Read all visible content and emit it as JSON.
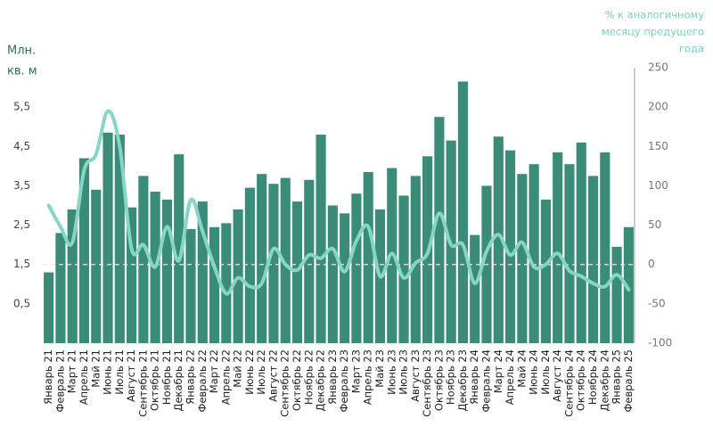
{
  "chart_data": {
    "type": "combo",
    "ylabel": [
      "Млн.",
      "кв. м"
    ],
    "y2label": [
      "% к аналогичному",
      "месяцу предущего",
      "года"
    ],
    "categories": [
      "Январь 21",
      "Февраль 21",
      "Март 21",
      "Апрель 21",
      "Май 21",
      "Июнь 21",
      "Июль 21",
      "Август 21",
      "Сентябрь 21",
      "Октябрь 21",
      "Ноябрь 21",
      "Декабрь 21",
      "Январь 22",
      "Февраль 22",
      "Март 22",
      "Апрель 22",
      "Май 22",
      "Июнь 22",
      "Июль 22",
      "Август 22",
      "Сентябрь 22",
      "Октябрь 22",
      "Ноябрь 22",
      "Декабрь 22",
      "Январь 23",
      "Февраль 23",
      "Март 23",
      "Апрель 23",
      "Май 23",
      "Июнь 23",
      "Июль 23",
      "Август 23",
      "Сентябрь 23",
      "Октябрь 23",
      "Ноябрь 23",
      "Декабрь 23",
      "Январь 24",
      "Февраль 24",
      "Март 24",
      "Апрель 24",
      "Май 24",
      "Июнь 24",
      "Июль 24",
      "Август 24",
      "Сентябрь 24",
      "Октябрь 24",
      "Ноябрь 24",
      "Декабрь 24",
      "Январь 25",
      "Февраль 25"
    ],
    "series": [
      {
        "type": "bar",
        "color": "#3a8c78",
        "values": [
          1.3,
          2.3,
          2.9,
          4.2,
          3.4,
          4.85,
          4.8,
          2.95,
          3.75,
          3.35,
          3.15,
          4.3,
          2.4,
          3.1,
          2.45,
          2.55,
          2.9,
          3.45,
          3.8,
          3.55,
          3.7,
          3.1,
          3.65,
          4.8,
          3.0,
          2.8,
          3.3,
          3.85,
          2.9,
          3.95,
          3.25,
          3.75,
          4.25,
          5.25,
          4.65,
          6.15,
          2.25,
          3.5,
          4.75,
          4.4,
          3.8,
          4.05,
          3.15,
          4.35,
          4.05,
          4.6,
          3.75,
          4.35,
          1.95,
          2.45
        ]
      },
      {
        "type": "line",
        "axis": "y2",
        "color": "#86d6c6",
        "values": [
          75,
          48,
          28,
          120,
          140,
          195,
          150,
          20,
          25,
          -3,
          48,
          5,
          82,
          42,
          -3,
          -37,
          -17,
          -28,
          -24,
          20,
          0,
          -7,
          12,
          8,
          20,
          -9,
          30,
          48,
          -15,
          14,
          -17,
          2,
          14,
          65,
          25,
          25,
          -24,
          17,
          38,
          12,
          28,
          -3,
          0,
          14,
          -8,
          -15,
          -24,
          -28,
          -13,
          -32
        ]
      }
    ],
    "ylim": [
      -0.5,
      6.5
    ],
    "yticks": [
      {
        "value": 0.5,
        "label": "0,5"
      },
      {
        "value": 1.5,
        "label": "1,5"
      },
      {
        "value": 2.5,
        "label": "2,5"
      },
      {
        "value": 3.5,
        "label": "3,5"
      },
      {
        "value": 4.5,
        "label": "4,5"
      },
      {
        "value": 5.5,
        "label": "5,5"
      }
    ],
    "y2lim": [
      -100,
      250
    ],
    "y2ticks": [
      -100,
      -50,
      0,
      50,
      100,
      150,
      200,
      250
    ]
  }
}
